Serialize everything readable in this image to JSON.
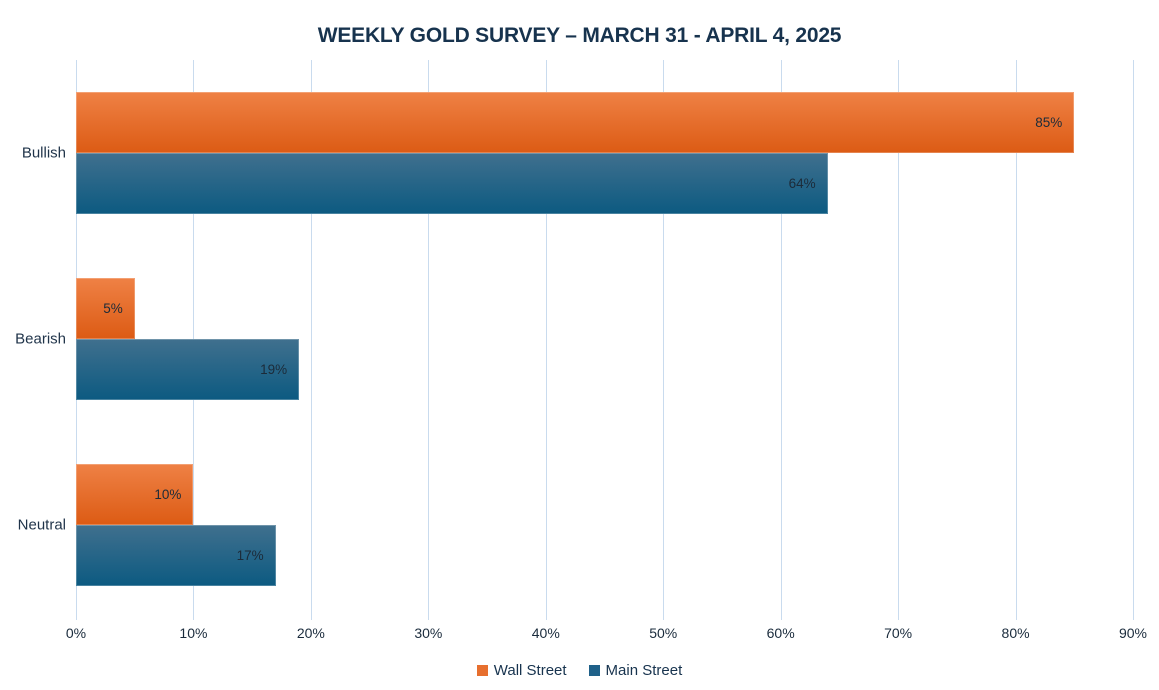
{
  "chart_data": {
    "type": "bar",
    "orientation": "horizontal",
    "title": "WEEKLY GOLD SURVEY – MARCH 31 - APRIL 4, 2025",
    "categories": [
      "Bullish",
      "Bearish",
      "Neutral"
    ],
    "series": [
      {
        "name": "Wall Street",
        "values": [
          85,
          5,
          10
        ],
        "labels": [
          "85%",
          "5%",
          "10%"
        ],
        "color_top": "#EF8145",
        "color_bottom": "#DC5B14",
        "legend_color": "#E76F2E"
      },
      {
        "name": "Main Street",
        "values": [
          64,
          19,
          17
        ],
        "labels": [
          "64%",
          "19%",
          "17%"
        ],
        "color_top": "#40708E",
        "color_bottom": "#0C5A81",
        "legend_color": "#1F6189"
      }
    ],
    "x_axis": {
      "min": 0,
      "max": 90,
      "ticks": [
        "0%",
        "10%",
        "20%",
        "30%",
        "40%",
        "50%",
        "60%",
        "70%",
        "80%",
        "90%"
      ]
    },
    "grid": true,
    "legend_position": "bottom",
    "colors": {
      "title_text": "#17334E",
      "gridline": "#C9DBEE",
      "data_label": "#1C2B39",
      "background": "#FFFFFF"
    }
  }
}
